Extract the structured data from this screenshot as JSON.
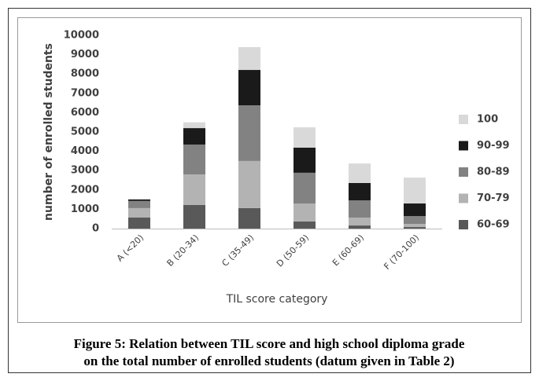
{
  "chart_data": {
    "type": "stacked_bar",
    "categories": [
      "A (<20)",
      "B (20-34)",
      "C (35-49)",
      "D (50-59)",
      "E (60-69)",
      "F (70-100)"
    ],
    "series": [
      {
        "name": "60-69",
        "color": "#595959",
        "values": [
          580,
          1220,
          1060,
          370,
          160,
          80
        ]
      },
      {
        "name": "70-79",
        "color": "#b3b3b3",
        "values": [
          480,
          1580,
          2440,
          930,
          410,
          160
        ]
      },
      {
        "name": "80-89",
        "color": "#828282",
        "values": [
          370,
          1550,
          2880,
          1590,
          890,
          410
        ]
      },
      {
        "name": "90-99",
        "color": "#1a1a1a",
        "values": [
          80,
          850,
          1830,
          1300,
          900,
          650
        ]
      },
      {
        "name": "100",
        "color": "#d9d9d9",
        "values": [
          30,
          300,
          1180,
          1050,
          1010,
          1340
        ]
      }
    ],
    "ylim": [
      0,
      10000
    ],
    "yticks": [
      0,
      1000,
      2000,
      3000,
      4000,
      5000,
      6000,
      7000,
      8000,
      9000,
      10000
    ],
    "grid": false,
    "legend": "right",
    "x_label": "TIL score category",
    "y_label": "number of enrolled students",
    "caption": [
      "Figure 5: Relation between TIL score and high school diploma grade",
      "on the total number of enrolled students (datum given in Table 2)"
    ]
  }
}
